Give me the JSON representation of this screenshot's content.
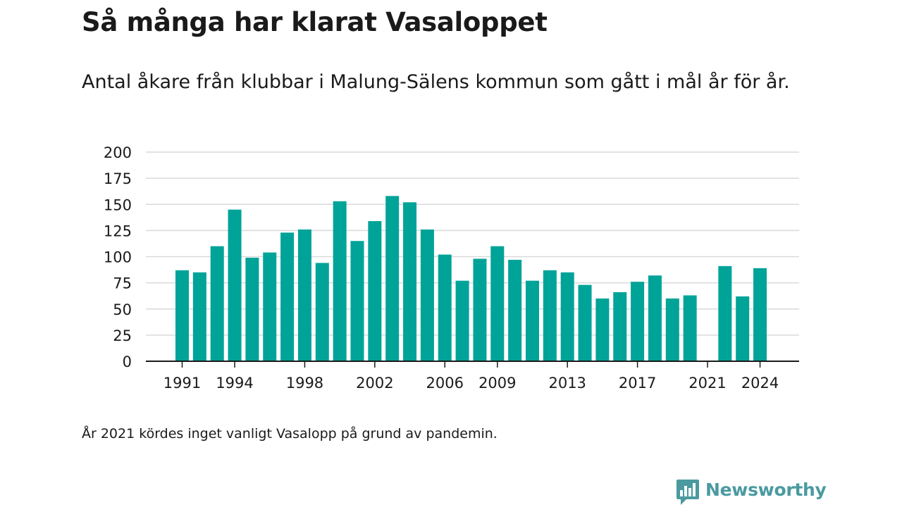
{
  "title": "Så många har klarat Vasaloppet",
  "subtitle": "Antal åkare från klubbar i Malung-Sälens kommun som gått i mål år för år.",
  "note": "År 2021 kördes inget vanligt Vasalopp på grund av pandemin.",
  "brand": {
    "name": "Newsworthy",
    "icon": "newsworthy-logo-icon",
    "color": "#4a9aa0"
  },
  "colors": {
    "bar": "#00a398",
    "grid": "#d9d9d9",
    "axis": "#1a1a1a"
  },
  "chart_data": {
    "type": "bar",
    "categories": [
      "1991",
      "1992",
      "1993",
      "1994",
      "1995",
      "1996",
      "1997",
      "1998",
      "1999",
      "2000",
      "2001",
      "2002",
      "2003",
      "2004",
      "2005",
      "2006",
      "2007",
      "2008",
      "2009",
      "2010",
      "2011",
      "2012",
      "2013",
      "2014",
      "2015",
      "2016",
      "2017",
      "2018",
      "2019",
      "2020",
      "2021",
      "2022",
      "2023",
      "2024"
    ],
    "values": [
      87,
      85,
      110,
      145,
      99,
      104,
      123,
      126,
      94,
      153,
      115,
      134,
      158,
      152,
      126,
      102,
      77,
      98,
      110,
      97,
      77,
      87,
      85,
      73,
      60,
      66,
      76,
      82,
      60,
      63,
      null,
      91,
      62,
      89
    ],
    "x_tick_labels": [
      "1991",
      "1994",
      "1998",
      "2002",
      "2006",
      "2009",
      "2013",
      "2017",
      "2021",
      "2024"
    ],
    "y_ticks": [
      0,
      25,
      50,
      75,
      100,
      125,
      150,
      175,
      200
    ],
    "ylim": [
      0,
      200
    ],
    "grid": true,
    "legend": "none",
    "xlabel": "",
    "ylabel": ""
  }
}
